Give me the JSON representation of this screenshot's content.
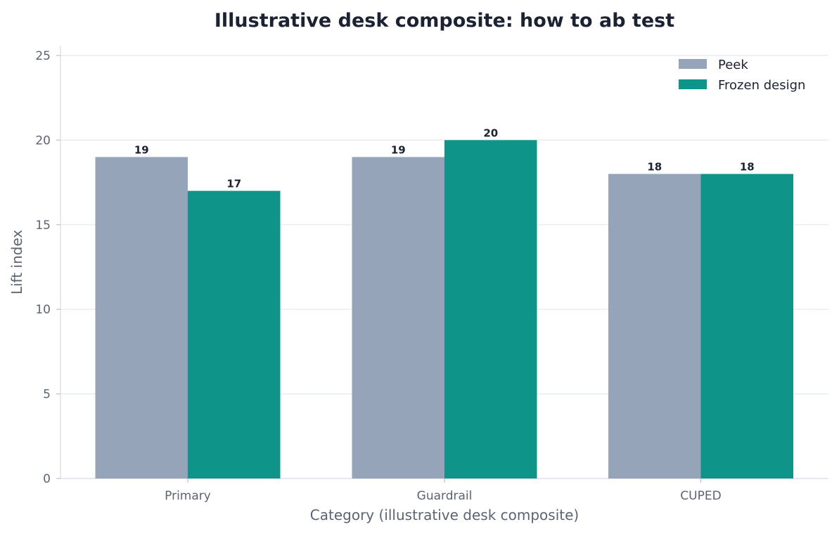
{
  "chart_data": {
    "type": "bar",
    "title": "Illustrative desk composite: how to ab test",
    "xlabel": "Category (illustrative desk composite)",
    "ylabel": "Lift index",
    "categories": [
      "Primary",
      "Guardrail",
      "CUPED"
    ],
    "series": [
      {
        "name": "Peek",
        "values": [
          19,
          19,
          18
        ],
        "color": "#95a4b9"
      },
      {
        "name": "Frozen design",
        "values": [
          17,
          20,
          18
        ],
        "color": "#0e9488"
      }
    ],
    "ylim": [
      0,
      25
    ],
    "yticks": [
      0,
      5,
      10,
      15,
      20,
      25
    ],
    "grid": true,
    "legend_position": "top-right"
  }
}
